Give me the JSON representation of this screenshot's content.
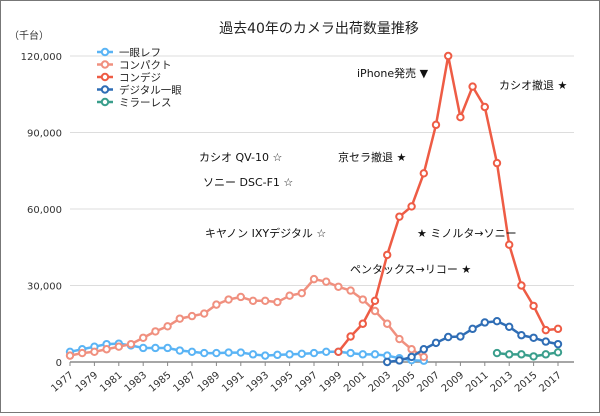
{
  "chart_data": {
    "type": "line",
    "title": "過去40年のカメラ出荷数量推移",
    "unit_label": "（千台）",
    "ylim": [
      0,
      120000
    ],
    "yticks": [
      "0",
      "30,000",
      "60,000",
      "90,000",
      "120,000"
    ],
    "ytick_values": [
      0,
      30000,
      60000,
      90000,
      120000
    ],
    "xlim": [
      1977,
      2017
    ],
    "xticks": [
      "1977",
      "1979",
      "1981",
      "1983",
      "1985",
      "1987",
      "1989",
      "1991",
      "1993",
      "1995",
      "1997",
      "1999",
      "2001",
      "2003",
      "2005",
      "2007",
      "2009",
      "2011",
      "2013",
      "2015",
      "2017"
    ],
    "grid": "horizontal",
    "legend_position": "top-left",
    "series": [
      {
        "name": "一眼レフ",
        "color": "#5ab4f5",
        "start": 1977,
        "values": [
          4000,
          5000,
          6000,
          7000,
          7200,
          6500,
          5500,
          5500,
          5500,
          4500,
          4000,
          3500,
          3500,
          3700,
          3700,
          3000,
          2500,
          2800,
          3000,
          3200,
          3500,
          4000,
          4000,
          3500,
          3000,
          3000,
          2500,
          1500,
          700,
          500
        ]
      },
      {
        "name": "コンパクト",
        "color": "#f0907f",
        "start": 1977,
        "values": [
          2500,
          3500,
          4000,
          5000,
          6000,
          7000,
          9500,
          12000,
          14000,
          17000,
          18000,
          19000,
          22500,
          24500,
          25500,
          24000,
          24000,
          23500,
          26000,
          27000,
          32500,
          31500,
          29500,
          28000,
          24500,
          20000,
          15000,
          9000,
          5000,
          2000
        ]
      },
      {
        "name": "コンデジ",
        "color": "#ee5c45",
        "start": 1999,
        "values": [
          4000,
          10000,
          15000,
          24000,
          42000,
          57000,
          61000,
          74000,
          93000,
          120000,
          96000,
          108000,
          100000,
          78000,
          46000,
          30000,
          22000,
          12500,
          13000
        ]
      },
      {
        "name": "デジタル一眼",
        "color": "#2f6db5",
        "start": 2003,
        "values": [
          0,
          600,
          2000,
          5000,
          7500,
          9800,
          10000,
          13000,
          15500,
          16000,
          13800,
          10500,
          9500,
          8000,
          7000
        ]
      },
      {
        "name": "ミラーレス",
        "color": "#3a9e8c",
        "start": 2012,
        "values": [
          3500,
          3000,
          3000,
          2200,
          3000,
          3800
        ]
      }
    ],
    "annotations": [
      "iPhone発売 ▼",
      "カシオ撤退 ★",
      "カシオ QV-10 ☆",
      "京セラ撤退 ★",
      "ソニー DSC-F1 ☆",
      "キヤノン IXYデジタル ☆",
      "★ ミノルタ→ソニー",
      "ペンタックス→リコー ★"
    ]
  }
}
